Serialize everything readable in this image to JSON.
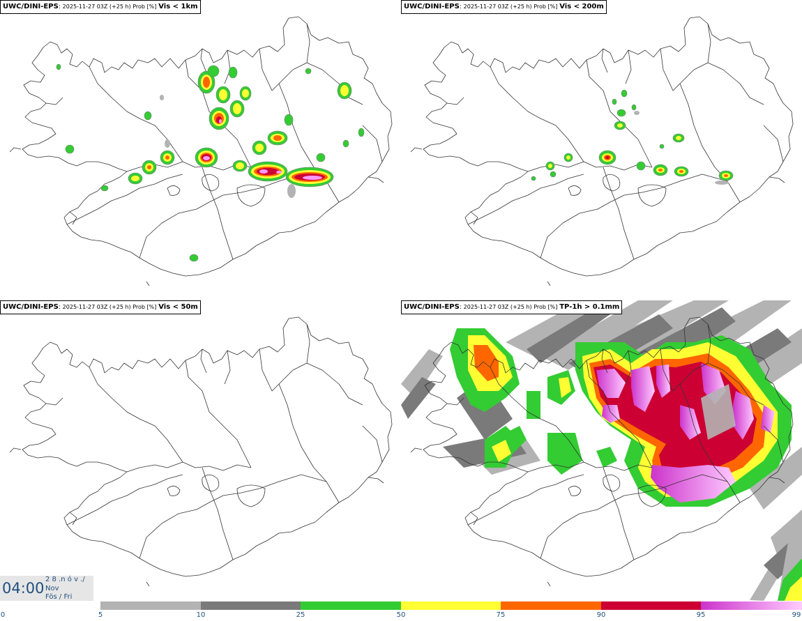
{
  "panels": [
    {
      "model": "UWC/DINI-EPS",
      "run": "2025-11-27 03Z (+25 h) Prob [%]",
      "variable": "Vis < 1km"
    },
    {
      "model": "UWC/DINI-EPS",
      "run": "2025-11-27 03Z (+25 h) Prob [%]",
      "variable": "Vis < 200m"
    },
    {
      "model": "UWC/DINI-EPS",
      "run": "2025-11-27 03Z (+25 h) Prob [%]",
      "variable": "Vis < 50m"
    },
    {
      "model": "UWC/DINI-EPS",
      "run": "2025-11-27 03Z (+25 h) Prob [%]",
      "variable": "TP-1h > 0.1mm"
    }
  ],
  "valid_time": {
    "time": "04:00",
    "date_top": "2 8 .n ó v ./",
    "month": "Nov",
    "weekday": "Fös / Fri"
  },
  "legend": {
    "ticks": [
      "0",
      "5",
      "10",
      "25",
      "50",
      "75",
      "90",
      "95",
      "99"
    ],
    "colors": {
      "p5_10": "#b3b3b3",
      "p10_25": "#7a7a7a",
      "p25_50": "#33cc33",
      "p50_75": "#ffff33",
      "p75_90": "#ff6600",
      "p90_95": "#cc0033",
      "p95_99_start": "#cc33cc",
      "p95_99_end": "#ffccff",
      "coast": "#333333"
    }
  }
}
